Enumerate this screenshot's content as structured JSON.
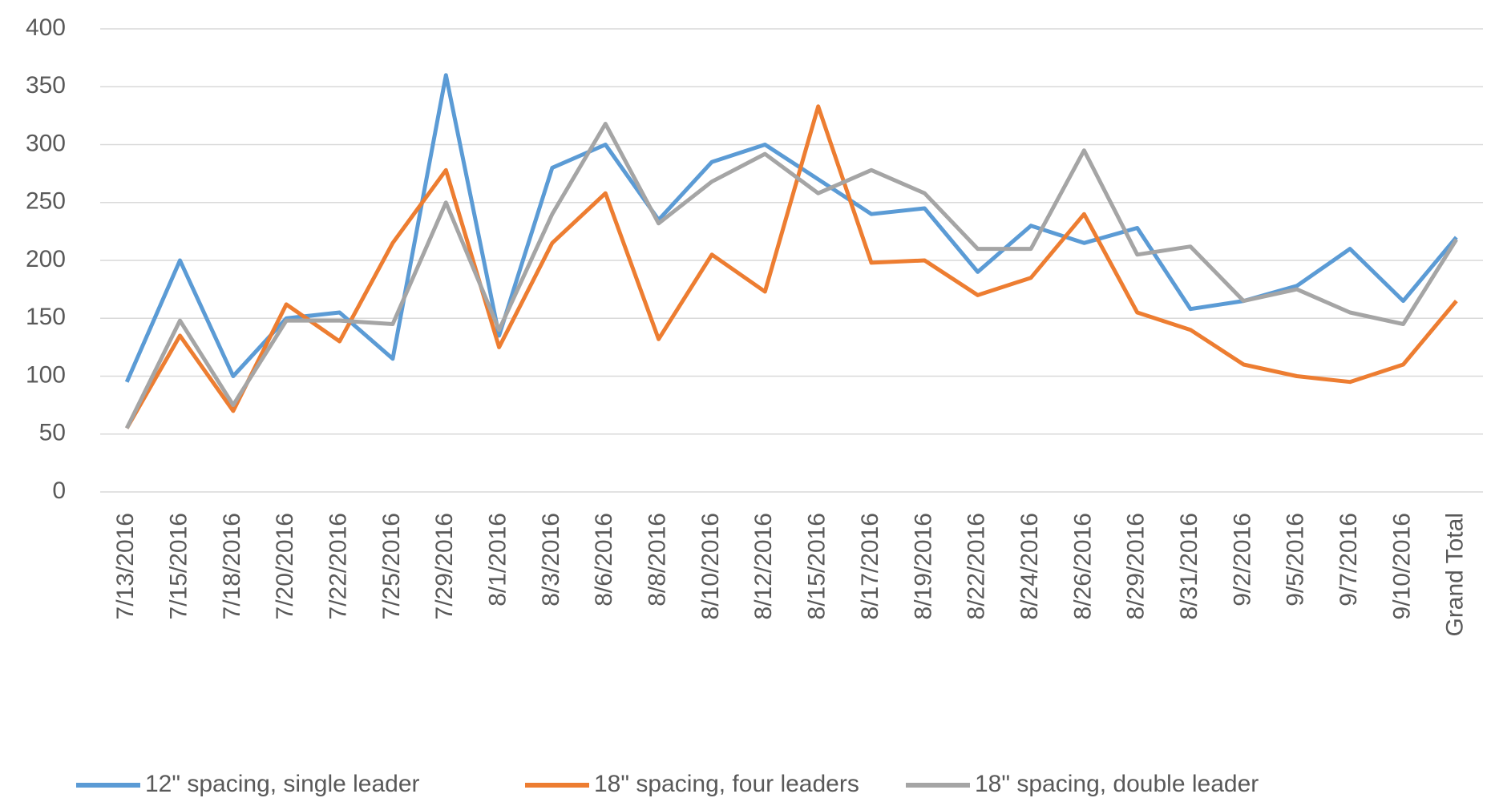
{
  "chart_data": {
    "type": "line",
    "categories": [
      "7/13/2016",
      "7/15/2016",
      "7/18/2016",
      "7/20/2016",
      "7/22/2016",
      "7/25/2016",
      "7/29/2016",
      "8/1/2016",
      "8/3/2016",
      "8/6/2016",
      "8/8/2016",
      "8/10/2016",
      "8/12/2016",
      "8/15/2016",
      "8/17/2016",
      "8/19/2016",
      "8/22/2016",
      "8/24/2016",
      "8/26/2016",
      "8/29/2016",
      "8/31/2016",
      "9/2/2016",
      "9/5/2016",
      "9/7/2016",
      "9/10/2016",
      "Grand Total"
    ],
    "series": [
      {
        "name": "12\" spacing, single leader",
        "color": "#5b9bd5",
        "values": [
          95,
          200,
          100,
          150,
          155,
          115,
          360,
          135,
          280,
          300,
          235,
          285,
          300,
          270,
          240,
          245,
          190,
          230,
          215,
          228,
          158,
          165,
          178,
          210,
          165,
          220
        ]
      },
      {
        "name": "18\" spacing, four leaders",
        "color": "#ed7d31",
        "values": [
          55,
          135,
          70,
          162,
          130,
          215,
          278,
          125,
          215,
          258,
          132,
          205,
          173,
          333,
          198,
          200,
          170,
          185,
          240,
          155,
          140,
          110,
          100,
          95,
          110,
          165
        ]
      },
      {
        "name": "18\" spacing, double leader",
        "color": "#a5a5a5",
        "values": [
          55,
          148,
          75,
          148,
          148,
          145,
          250,
          140,
          240,
          318,
          232,
          268,
          292,
          258,
          278,
          258,
          210,
          210,
          295,
          205,
          212,
          165,
          175,
          155,
          145,
          218
        ]
      }
    ],
    "ylim": [
      0,
      400
    ],
    "yticks": [
      0,
      50,
      100,
      150,
      200,
      250,
      300,
      350,
      400
    ],
    "grid": true,
    "legend": "bottom"
  }
}
